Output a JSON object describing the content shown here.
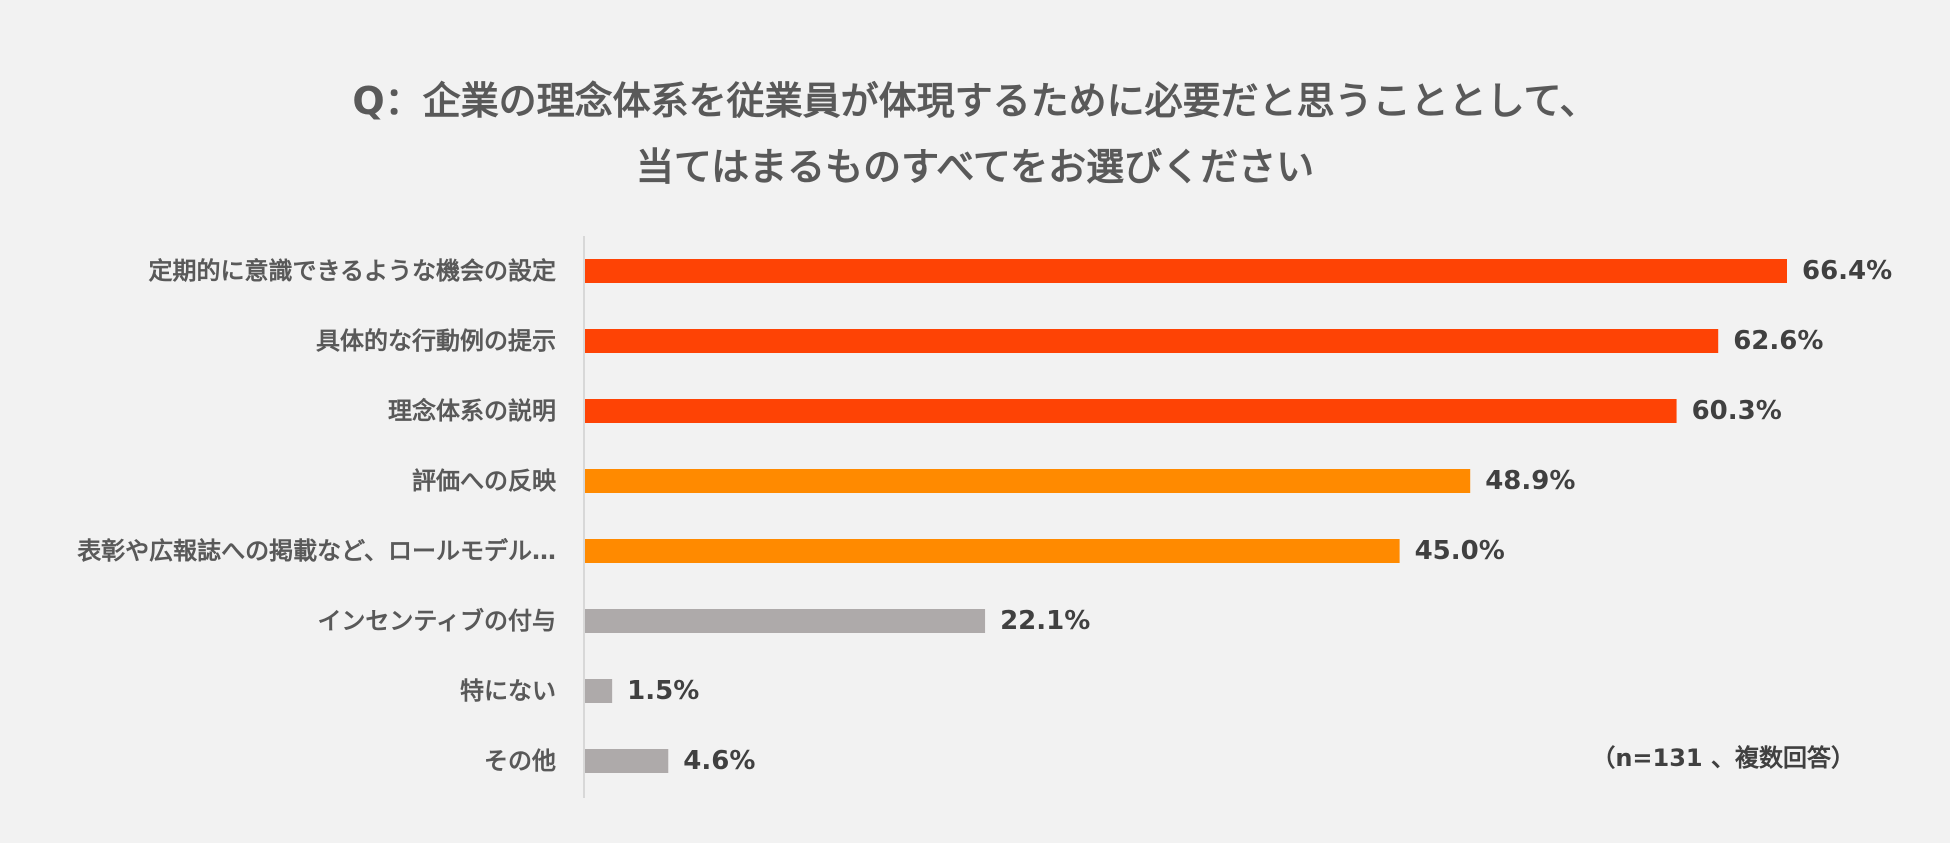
{
  "chart_data": {
    "type": "bar",
    "orientation": "horizontal",
    "title_lines": [
      "Q：企業の理念体系を従業員が体現するために必要だと思うこととして、",
      "当てはまるものすべてをお選びください"
    ],
    "categories": [
      "定期的に意識できるような機会の設定",
      "具体的な行動例の提示",
      "理念体系の説明",
      "評価への反映",
      "表彰や広報誌への掲載など、ロールモデル…",
      "インセンティブの付与",
      "特にない",
      "その他"
    ],
    "values": [
      66.4,
      62.6,
      60.3,
      48.9,
      45.0,
      22.1,
      1.5,
      4.6
    ],
    "value_labels": [
      "66.4%",
      "62.6%",
      "60.3%",
      "48.9%",
      "45.0%",
      "22.1%",
      "1.5%",
      "4.6%"
    ],
    "bar_colors": [
      "#fe4305",
      "#fe4305",
      "#fe4305",
      "#ff8a00",
      "#ff8a00",
      "#aeaaaa",
      "#aeaaaa",
      "#aeaaaa"
    ],
    "xlim": [
      0,
      66.4
    ],
    "note": "（n=131 、複数回答）"
  },
  "colors": {
    "background": "#f2f2f2",
    "text": "#595959",
    "value_text": "#404040",
    "axis": "#d0d0d0"
  }
}
